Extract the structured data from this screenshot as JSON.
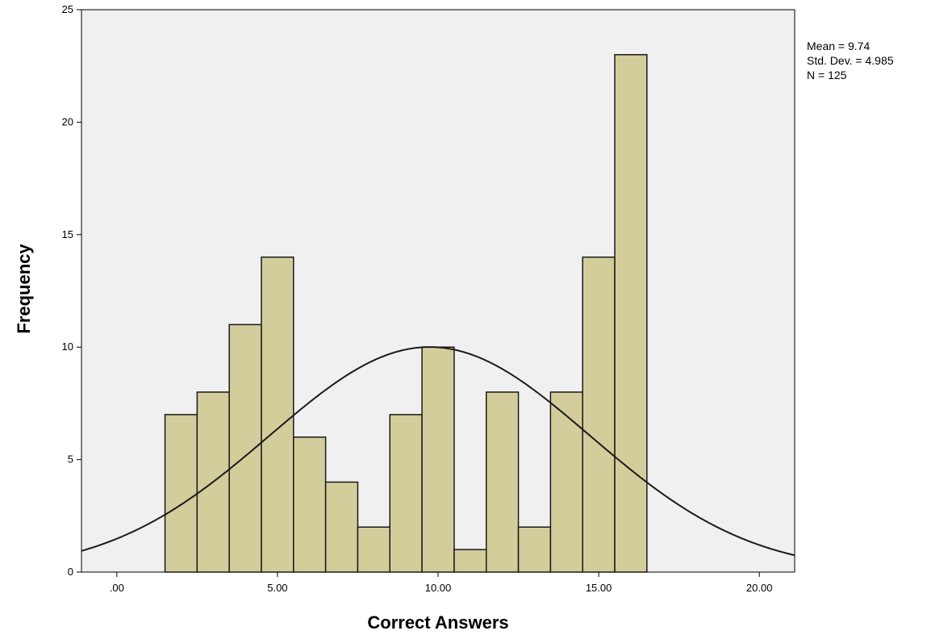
{
  "chart_data": {
    "type": "bar",
    "subtype": "histogram",
    "xlabel": "Correct Answers",
    "ylabel": "Frequency",
    "xlim": [
      -1.1,
      21.1
    ],
    "ylim": [
      0,
      25
    ],
    "x_ticks": [
      {
        "value": 0,
        "label": ".00"
      },
      {
        "value": 5,
        "label": "5.00"
      },
      {
        "value": 10,
        "label": "10.00"
      },
      {
        "value": 15,
        "label": "15.00"
      },
      {
        "value": 20,
        "label": "20.00"
      }
    ],
    "y_ticks": [
      {
        "value": 0,
        "label": "0"
      },
      {
        "value": 5,
        "label": "5"
      },
      {
        "value": 10,
        "label": "10"
      },
      {
        "value": 15,
        "label": "15"
      },
      {
        "value": 20,
        "label": "20"
      },
      {
        "value": 25,
        "label": "25"
      }
    ],
    "bins": [
      {
        "center": 2,
        "count": 7
      },
      {
        "center": 3,
        "count": 8
      },
      {
        "center": 4,
        "count": 11
      },
      {
        "center": 5,
        "count": 14
      },
      {
        "center": 6,
        "count": 6
      },
      {
        "center": 7,
        "count": 4
      },
      {
        "center": 8,
        "count": 2
      },
      {
        "center": 9,
        "count": 7
      },
      {
        "center": 10,
        "count": 10
      },
      {
        "center": 11,
        "count": 1
      },
      {
        "center": 12,
        "count": 8
      },
      {
        "center": 13,
        "count": 2
      },
      {
        "center": 14,
        "count": 8
      },
      {
        "center": 15,
        "count": 14
      },
      {
        "center": 16,
        "count": 23
      }
    ],
    "bin_width": 1,
    "normal_curve": {
      "mean": 9.74,
      "std": 4.985,
      "n": 125
    },
    "stats": [
      "Mean = 9.74",
      "Std. Dev. = 4.985",
      "N = 125"
    ],
    "grid": false,
    "colors": {
      "bar_fill": "#d3cd9b",
      "bar_stroke": "#1a1a1a",
      "plot_background": "#f0f0f0",
      "curve": "#1a1a1a"
    }
  }
}
